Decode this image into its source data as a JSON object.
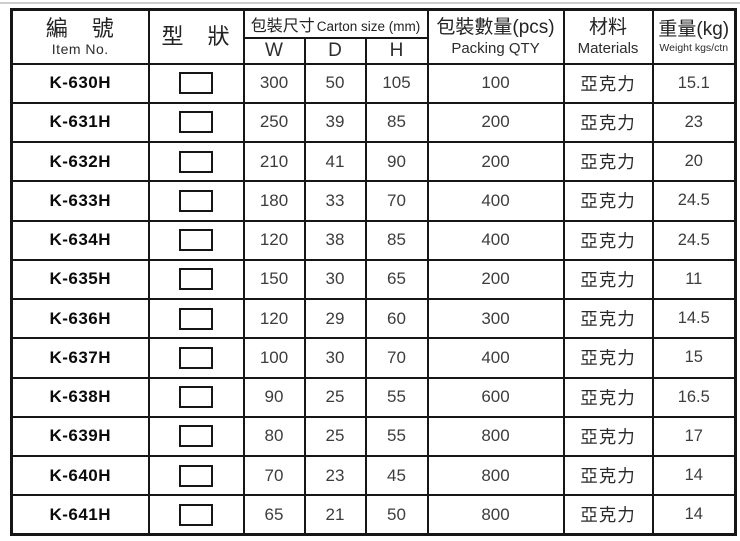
{
  "table": {
    "header": {
      "item_no": {
        "zh": "編　號",
        "en": "Item No."
      },
      "shape": {
        "zh": "型　狀"
      },
      "carton": {
        "zh": "包裝尺寸",
        "en": "Carton size (mm)",
        "sub": [
          "W",
          "D",
          "H"
        ]
      },
      "qty": {
        "zh": "包裝數量(pcs)",
        "en": "Packing QTY"
      },
      "materials": {
        "zh": "材料",
        "en": "Materials"
      },
      "weight": {
        "zh": "重量(kg)",
        "en": "Weight kgs/ctn"
      }
    },
    "rows": [
      {
        "item": "K-630H",
        "shape": "rectangle",
        "w": "300",
        "d": "50",
        "h": "105",
        "qty": "100",
        "material": "亞克力",
        "weight": "15.1"
      },
      {
        "item": "K-631H",
        "shape": "rectangle",
        "w": "250",
        "d": "39",
        "h": "85",
        "qty": "200",
        "material": "亞克力",
        "weight": "23"
      },
      {
        "item": "K-632H",
        "shape": "rectangle",
        "w": "210",
        "d": "41",
        "h": "90",
        "qty": "200",
        "material": "亞克力",
        "weight": "20"
      },
      {
        "item": "K-633H",
        "shape": "rectangle",
        "w": "180",
        "d": "33",
        "h": "70",
        "qty": "400",
        "material": "亞克力",
        "weight": "24.5"
      },
      {
        "item": "K-634H",
        "shape": "rectangle",
        "w": "120",
        "d": "38",
        "h": "85",
        "qty": "400",
        "material": "亞克力",
        "weight": "24.5"
      },
      {
        "item": "K-635H",
        "shape": "rectangle",
        "w": "150",
        "d": "30",
        "h": "65",
        "qty": "200",
        "material": "亞克力",
        "weight": "11"
      },
      {
        "item": "K-636H",
        "shape": "rectangle",
        "w": "120",
        "d": "29",
        "h": "60",
        "qty": "300",
        "material": "亞克力",
        "weight": "14.5"
      },
      {
        "item": "K-637H",
        "shape": "rectangle",
        "w": "100",
        "d": "30",
        "h": "70",
        "qty": "400",
        "material": "亞克力",
        "weight": "15"
      },
      {
        "item": "K-638H",
        "shape": "rectangle",
        "w": "90",
        "d": "25",
        "h": "55",
        "qty": "600",
        "material": "亞克力",
        "weight": "16.5"
      },
      {
        "item": "K-639H",
        "shape": "rectangle",
        "w": "80",
        "d": "25",
        "h": "55",
        "qty": "800",
        "material": "亞克力",
        "weight": "17"
      },
      {
        "item": "K-640H",
        "shape": "rectangle",
        "w": "70",
        "d": "23",
        "h": "45",
        "qty": "800",
        "material": "亞克力",
        "weight": "14"
      },
      {
        "item": "K-641H",
        "shape": "rectangle",
        "w": "65",
        "d": "21",
        "h": "50",
        "qty": "800",
        "material": "亞克力",
        "weight": "14"
      }
    ]
  }
}
